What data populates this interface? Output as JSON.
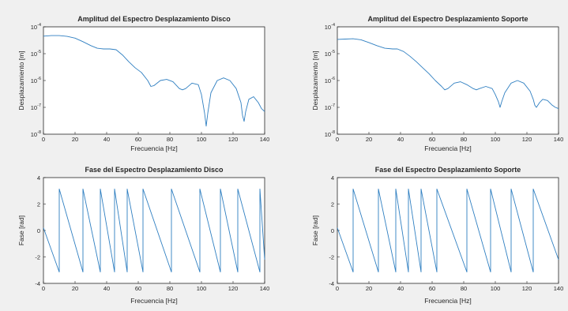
{
  "chart_data": [
    {
      "type": "line",
      "title": "Amplitud del Espectro Desplazamiento Disco",
      "xlabel": "Frecuencia [Hz]",
      "ylabel": "Desplazamiento [m]",
      "xlim": [
        0,
        140
      ],
      "ylim": [
        1e-08,
        0.0001
      ],
      "yscale": "log",
      "xticks": [
        "0",
        "20",
        "40",
        "60",
        "80",
        "100",
        "120",
        "140"
      ],
      "yticks": [
        {
          "base": "10",
          "exp": "-8",
          "value": 1e-08
        },
        {
          "base": "10",
          "exp": "-7",
          "value": 1e-07
        },
        {
          "base": "10",
          "exp": "-6",
          "value": 1e-06
        },
        {
          "base": "10",
          "exp": "-5",
          "value": 1e-05
        },
        {
          "base": "10",
          "exp": "-4",
          "value": 0.0001
        }
      ],
      "series": [
        {
          "x": [
            0,
            5,
            10,
            15,
            20,
            25,
            30,
            34,
            38,
            42,
            46,
            50,
            54,
            58,
            62,
            66,
            68,
            70,
            74,
            78,
            82,
            86,
            88,
            90,
            94,
            98,
            100,
            102,
            103,
            104,
            106,
            110,
            114,
            118,
            122,
            125,
            126,
            127,
            128,
            130,
            133,
            136,
            138,
            140
          ],
          "y": [
            4.5e-05,
            4.7e-05,
            4.7e-05,
            4.4e-05,
            3.8e-05,
            2.8e-05,
            2e-05,
            1.6e-05,
            1.5e-05,
            1.5e-05,
            1.4e-05,
            9e-06,
            5e-06,
            3e-06,
            2e-06,
            1e-06,
            6e-07,
            6.5e-07,
            1e-06,
            1.1e-06,
            9e-07,
            5e-07,
            4.5e-07,
            5e-07,
            8e-07,
            7e-07,
            3e-07,
            6e-08,
            2e-08,
            6e-08,
            3.5e-07,
            1e-06,
            1.25e-06,
            1e-06,
            5e-07,
            1.5e-07,
            5e-08,
            3e-08,
            7e-08,
            2e-07,
            2.5e-07,
            1.5e-07,
            9e-08,
            7e-08
          ]
        }
      ]
    },
    {
      "type": "line",
      "title": "Amplitud del Espectro Desplazamiento Soporte",
      "xlabel": "Frecuencia [Hz]",
      "ylabel": "Desplazamiento [m]",
      "xlim": [
        0,
        140
      ],
      "ylim": [
        1e-08,
        0.0001
      ],
      "yscale": "log",
      "xticks": [
        "0",
        "20",
        "40",
        "60",
        "80",
        "100",
        "120",
        "140"
      ],
      "yticks": [
        {
          "base": "10",
          "exp": "-8",
          "value": 1e-08
        },
        {
          "base": "10",
          "exp": "-7",
          "value": 1e-07
        },
        {
          "base": "10",
          "exp": "-6",
          "value": 1e-06
        },
        {
          "base": "10",
          "exp": "-5",
          "value": 1e-05
        },
        {
          "base": "10",
          "exp": "-4",
          "value": 0.0001
        }
      ],
      "series": [
        {
          "x": [
            0,
            5,
            10,
            15,
            20,
            25,
            30,
            35,
            38,
            42,
            46,
            50,
            54,
            58,
            62,
            66,
            68,
            70,
            74,
            78,
            82,
            86,
            88,
            90,
            94,
            98,
            100,
            102,
            103,
            104,
            106,
            110,
            114,
            118,
            122,
            124,
            125,
            126,
            128,
            130,
            133,
            136,
            138,
            140
          ],
          "y": [
            3.4e-05,
            3.5e-05,
            3.6e-05,
            3.3e-05,
            2.6e-05,
            2e-05,
            1.6e-05,
            1.5e-05,
            1.5e-05,
            1.2e-05,
            8e-06,
            5e-06,
            3e-06,
            1.8e-06,
            1e-06,
            6e-07,
            4.5e-07,
            5e-07,
            8e-07,
            9e-07,
            7e-07,
            5e-07,
            4.5e-07,
            5e-07,
            6e-07,
            5e-07,
            3e-07,
            1.6e-07,
            1e-07,
            1.6e-07,
            3.5e-07,
            8e-07,
            1e-06,
            8e-07,
            4e-07,
            2e-07,
            1.2e-07,
            1e-07,
            1.5e-07,
            2e-07,
            1.8e-07,
            1.2e-07,
            1e-07,
            9e-08
          ]
        }
      ]
    },
    {
      "type": "line",
      "title": "Fase del Espectro Desplazamiento Disco",
      "xlabel": "Frecuencia [Hz]",
      "ylabel": "Fase [rad]",
      "xlim": [
        0,
        140
      ],
      "ylim": [
        -4,
        4
      ],
      "xticks": [
        "0",
        "20",
        "40",
        "60",
        "80",
        "100",
        "120",
        "140"
      ],
      "yticks": [
        "-4",
        "-2",
        "0",
        "2",
        "4"
      ],
      "wrap_x": [
        0,
        10,
        25,
        36,
        45,
        53,
        63,
        81,
        99,
        112,
        123,
        137,
        140
      ],
      "phase_range": [
        -3.14,
        3.14
      ]
    },
    {
      "type": "line",
      "title": "Fase del Espectro Desplazamiento Soporte",
      "xlabel": "Frecuencia [Hz]",
      "ylabel": "Fase [rad]",
      "xlim": [
        0,
        140
      ],
      "ylim": [
        -4,
        4
      ],
      "xticks": [
        "0",
        "20",
        "40",
        "60",
        "80",
        "100",
        "120",
        "140"
      ],
      "yticks": [
        "-4",
        "-2",
        "0",
        "2",
        "4"
      ],
      "wrap_x": [
        0,
        10,
        26,
        37,
        45,
        53,
        63,
        82,
        97,
        110,
        124,
        140
      ],
      "phase_range": [
        -3.14,
        3.14
      ]
    }
  ]
}
